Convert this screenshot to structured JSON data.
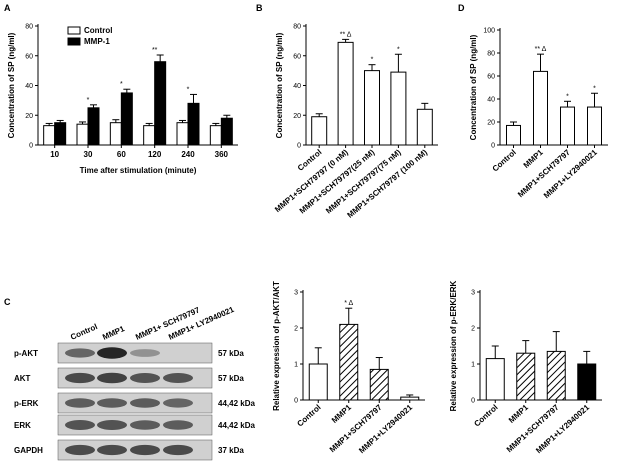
{
  "panel_labels": [
    "A",
    "B",
    "D",
    "C"
  ],
  "chart_data": [
    {
      "panel": "A",
      "type": "bar",
      "ylabel": "Concentration of SP (ng/ml)",
      "xlabel": "Time after stimulation (minute)",
      "categories": [
        "10",
        "30",
        "60",
        "120",
        "240",
        "360"
      ],
      "ylim": [
        0,
        80
      ],
      "yticks": [
        0,
        20,
        40,
        60,
        80
      ],
      "legend": "top-left",
      "series": [
        {
          "name": "Control",
          "fill": "#ffffff",
          "values": [
            13,
            14,
            15,
            13,
            15,
            13
          ],
          "errors": [
            1.5,
            1.5,
            2,
            1.5,
            1.5,
            1.5
          ]
        },
        {
          "name": "MMP-1",
          "fill": "#000000",
          "values": [
            15,
            25,
            35,
            56,
            28,
            18
          ],
          "errors": [
            1.5,
            2,
            2.5,
            4.5,
            6,
            2
          ]
        }
      ],
      "annotations": [
        "",
        "*",
        "*",
        "**",
        "*",
        ""
      ]
    },
    {
      "panel": "B",
      "type": "bar",
      "ylabel": "Concentration of SP (ng/ml)",
      "categories": [
        "Control",
        "MMP1+SCH79797 (0 nM)",
        "MMP1+SCH79797(25 nM)",
        "MMP1+SCH79797(75 nM)",
        "MMP1+SCH79797 (100 nM)"
      ],
      "ylim": [
        0,
        80
      ],
      "yticks": [
        0,
        20,
        40,
        60,
        80
      ],
      "values": [
        19,
        69,
        50,
        49,
        24
      ],
      "errors": [
        2,
        2,
        4,
        12,
        4
      ],
      "annotations": [
        "",
        "** Δ",
        "*",
        "*",
        ""
      ]
    },
    {
      "panel": "D",
      "type": "bar",
      "ylabel": "Concentration of SP (ng/ml)",
      "categories": [
        "Control",
        "MMP1",
        "MMP1+SCH79797",
        "MMP1+LY2940021"
      ],
      "ylim": [
        0,
        100
      ],
      "yticks": [
        0,
        20,
        40,
        60,
        80,
        100
      ],
      "values": [
        17,
        64,
        33,
        33
      ],
      "errors": [
        3,
        15,
        5,
        12
      ],
      "annotations": [
        "",
        "** Δ",
        "*",
        "*"
      ]
    },
    {
      "panel": "C-AKT",
      "type": "bar",
      "ylabel": "Relative expression of p-AKT/AKT",
      "categories": [
        "Control",
        "MMP1",
        "MMP1+SCH79797",
        "MMP1+LY2940021"
      ],
      "ylim": [
        0,
        3
      ],
      "yticks": [
        0,
        1,
        2,
        3
      ],
      "values": [
        1.0,
        2.1,
        0.85,
        0.08
      ],
      "errors": [
        0.45,
        0.45,
        0.33,
        0.06
      ],
      "fills": [
        "white",
        "hatch",
        "hatch",
        "white"
      ],
      "annotations": [
        "",
        "* Δ",
        "",
        ""
      ]
    },
    {
      "panel": "C-ERK",
      "type": "bar",
      "ylabel": "Relative expression of p-ERK/ERK",
      "categories": [
        "Control",
        "MMP1",
        "MMP1+SCH79797",
        "MMP1+LY2940021"
      ],
      "ylim": [
        0,
        3
      ],
      "yticks": [
        0,
        1,
        2,
        3
      ],
      "values": [
        1.15,
        1.3,
        1.35,
        1.0
      ],
      "errors": [
        0.35,
        0.35,
        0.55,
        0.35
      ],
      "fills": [
        "white",
        "hatch",
        "hatch",
        "black"
      ],
      "annotations": [
        "",
        "",
        "",
        ""
      ]
    }
  ],
  "blot": {
    "lanes": [
      "Control",
      "MMP1",
      "MMP1+ SCH79797",
      "MMP1+ LY2940021"
    ],
    "rows": [
      {
        "label": "p-AKT",
        "size": "57 kDa",
        "intensity": [
          0.55,
          0.9,
          0.3,
          0.0
        ]
      },
      {
        "label": "AKT",
        "size": "57 kDa",
        "intensity": [
          0.7,
          0.75,
          0.65,
          0.65
        ]
      },
      {
        "label": "p-ERK",
        "size": "44,42 kDa",
        "intensity": [
          0.6,
          0.6,
          0.6,
          0.55
        ]
      },
      {
        "label": "ERK",
        "size": "44,42 kDa",
        "intensity": [
          0.65,
          0.65,
          0.6,
          0.6
        ]
      },
      {
        "label": "GAPDH",
        "size": "37 kDa",
        "intensity": [
          0.7,
          0.7,
          0.7,
          0.7
        ]
      }
    ]
  }
}
